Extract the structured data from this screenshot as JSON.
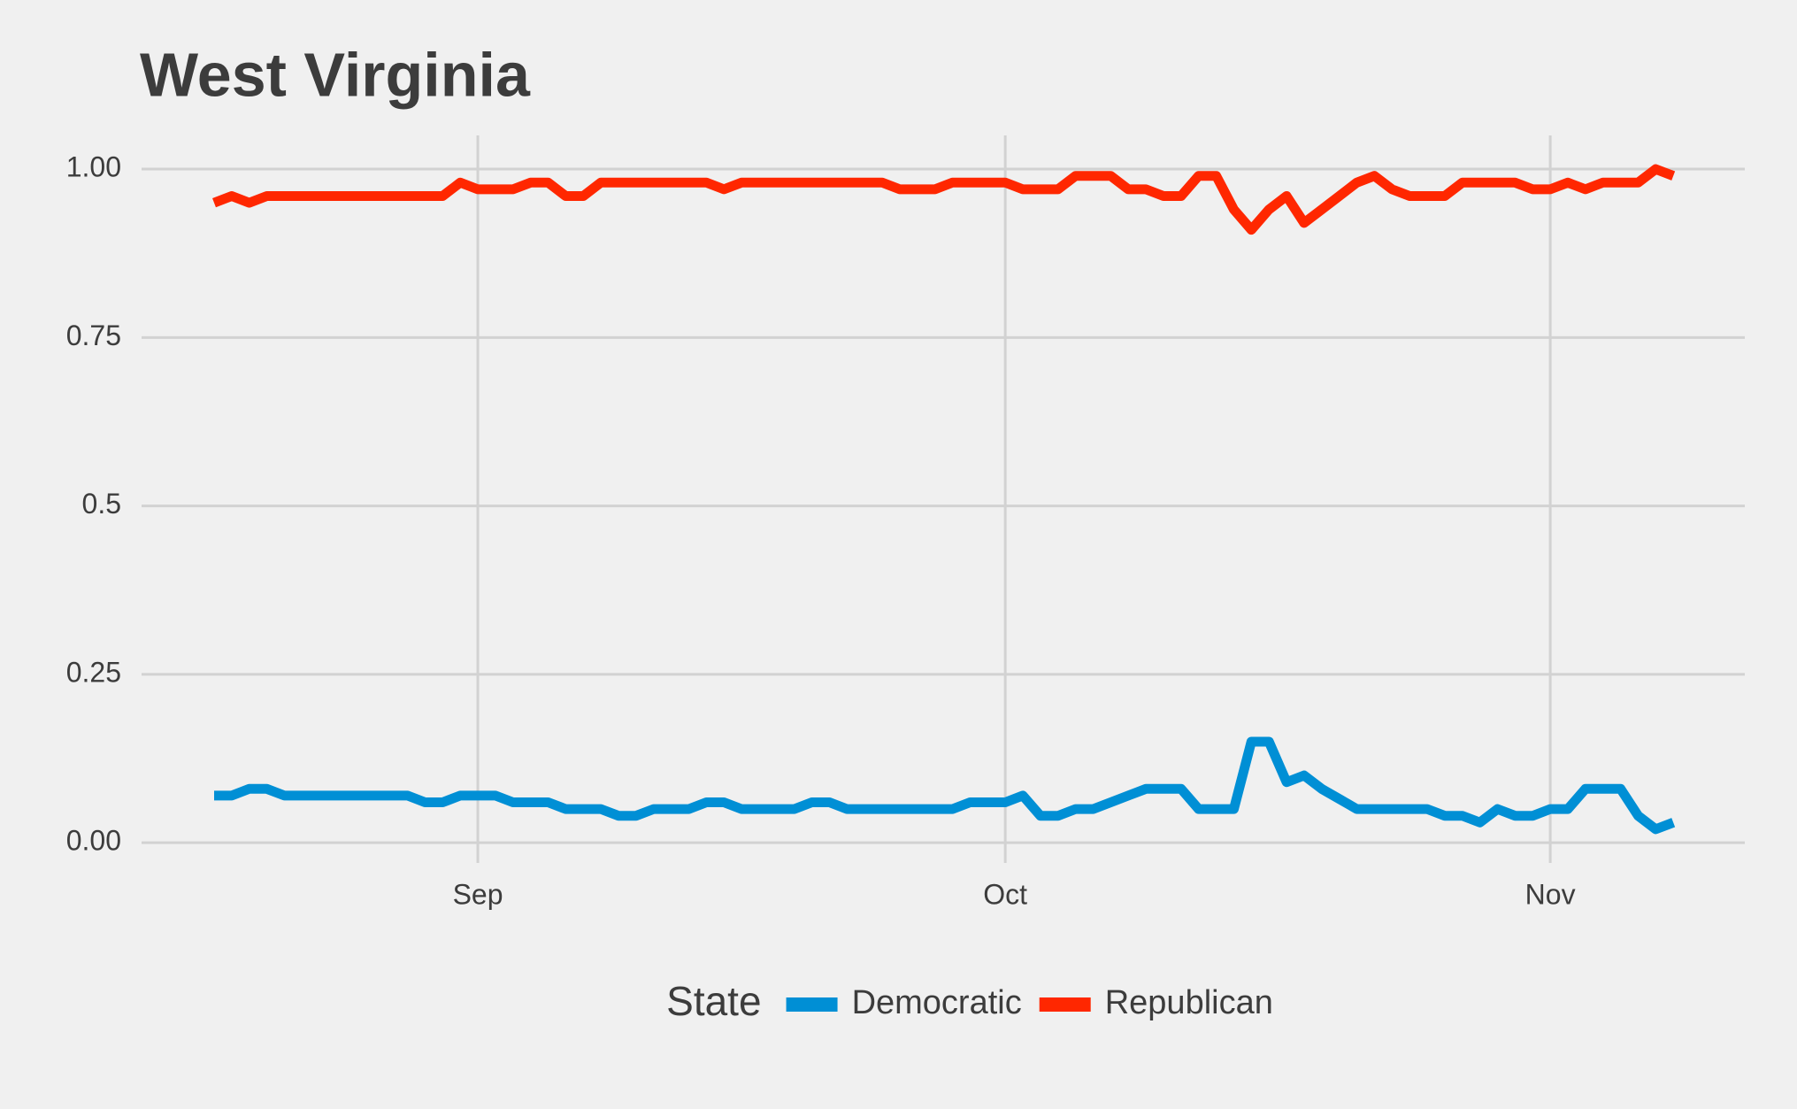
{
  "chart_data": {
    "type": "line",
    "title": "West Virginia",
    "categories": [
      null,
      null,
      null,
      null,
      null,
      null,
      null,
      null,
      null,
      null,
      null,
      null,
      null,
      null,
      null,
      "Sep",
      null,
      null,
      null,
      null,
      null,
      null,
      null,
      null,
      null,
      null,
      null,
      null,
      null,
      null,
      null,
      null,
      null,
      null,
      null,
      null,
      null,
      null,
      null,
      null,
      null,
      null,
      null,
      null,
      null,
      "Oct",
      null,
      null,
      null,
      null,
      null,
      null,
      null,
      null,
      null,
      null,
      null,
      null,
      null,
      null,
      null,
      null,
      null,
      null,
      null,
      null,
      null,
      null,
      null,
      null,
      null,
      null,
      null,
      null,
      null,
      null,
      "Nov",
      null,
      null,
      null,
      null,
      null,
      null,
      null
    ],
    "series": [
      {
        "name": "Democratic",
        "color": "#008fd5",
        "values": [
          0.07,
          0.07,
          0.08,
          0.08,
          0.07,
          0.07,
          0.07,
          0.07,
          0.07,
          0.07,
          0.07,
          0.07,
          0.06,
          0.06,
          0.07,
          0.07,
          0.07,
          0.06,
          0.06,
          0.06,
          0.05,
          0.05,
          0.05,
          0.04,
          0.04,
          0.05,
          0.05,
          0.05,
          0.06,
          0.06,
          0.05,
          0.05,
          0.05,
          0.05,
          0.06,
          0.06,
          0.05,
          0.05,
          0.05,
          0.05,
          0.05,
          0.05,
          0.05,
          0.06,
          0.06,
          0.06,
          0.07,
          0.04,
          0.04,
          0.05,
          0.05,
          0.06,
          0.07,
          0.08,
          0.08,
          0.08,
          0.05,
          0.05,
          0.05,
          0.15,
          0.15,
          0.09,
          0.1,
          0.08,
          0.065,
          0.05,
          0.05,
          0.05,
          0.05,
          0.05,
          0.04,
          0.04,
          0.03,
          0.05,
          0.04,
          0.04,
          0.05,
          0.05,
          0.08,
          0.08,
          0.08,
          0.04,
          0.02,
          0.03
        ]
      },
      {
        "name": "Republican",
        "color": "#ff2700",
        "values": [
          0.95,
          0.96,
          0.95,
          0.96,
          0.96,
          0.96,
          0.96,
          0.96,
          0.96,
          0.96,
          0.96,
          0.96,
          0.96,
          0.96,
          0.98,
          0.97,
          0.97,
          0.97,
          0.98,
          0.98,
          0.96,
          0.96,
          0.98,
          0.98,
          0.98,
          0.98,
          0.98,
          0.98,
          0.98,
          0.97,
          0.98,
          0.98,
          0.98,
          0.98,
          0.98,
          0.98,
          0.98,
          0.98,
          0.98,
          0.97,
          0.97,
          0.97,
          0.98,
          0.98,
          0.98,
          0.98,
          0.97,
          0.97,
          0.97,
          0.99,
          0.99,
          0.99,
          0.97,
          0.97,
          0.96,
          0.96,
          0.99,
          0.99,
          0.94,
          0.91,
          0.94,
          0.96,
          0.92,
          0.94,
          0.96,
          0.98,
          0.99,
          0.97,
          0.96,
          0.96,
          0.96,
          0.98,
          0.98,
          0.98,
          0.98,
          0.97,
          0.97,
          0.98,
          0.97,
          0.98,
          0.98,
          0.98,
          1.0,
          0.99
        ]
      }
    ],
    "ylim": [
      -0.03,
      1.05
    ],
    "yticks": [
      {
        "value": 0,
        "label": "0.00"
      },
      0.25,
      0.5,
      0.75,
      {
        "value": 1,
        "label": "1.00"
      }
    ],
    "grid": true,
    "legend_title": "State",
    "legend": "bottom"
  }
}
